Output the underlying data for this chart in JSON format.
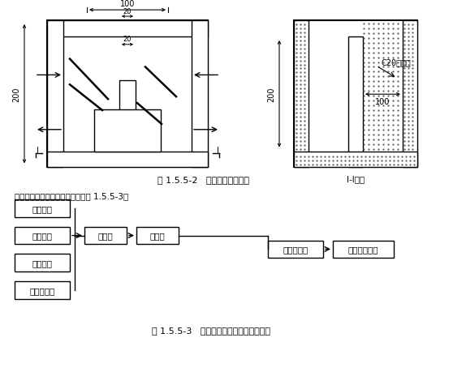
{
  "title1": "图 1.5.5-2   沉淀池结构示意图",
  "title2": "图 1.5.5-3   地面排水系统水流走向示意图",
  "caption_text": "施工地面排水系统的水流走向见图 1.5.5-3。",
  "section_label": "I-I剖面",
  "dim_100_top": "100",
  "dim_20_top": "20",
  "dim_20_mid": "20",
  "dim_200_left": "200",
  "dim_200_right": "200",
  "dim_100_right": "100",
  "c20_label": "C20混凝土",
  "flow_boxes": [
    "地表雨水",
    "基坑降水",
    "基坑明水",
    "洗车槽污水"
  ],
  "flow_box2": [
    "排水沟",
    "沉砂池"
  ],
  "flow_box3": [
    "三级沉淀池",
    "市政排水管道"
  ],
  "bg_color": "#ffffff",
  "line_color": "#000000"
}
